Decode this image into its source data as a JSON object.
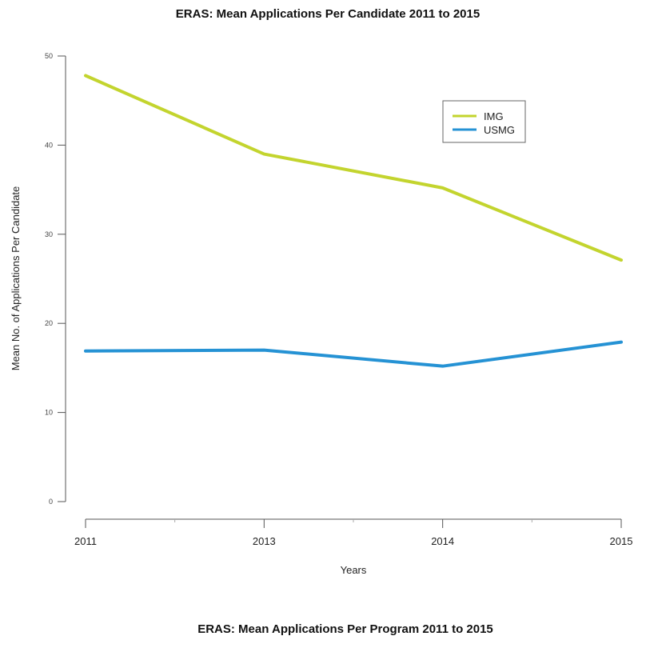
{
  "chart_data": {
    "type": "line",
    "title": "ERAS: Mean Applications Per Candidate 2011  to 2015",
    "xlabel": "Years",
    "ylabel": "Mean No. of Applications Per Candidate",
    "categories": [
      "2011",
      "2013",
      "2014",
      "2015"
    ],
    "yticks": [
      "0",
      "10",
      "20",
      "30",
      "40",
      "50"
    ],
    "ylim": [
      0,
      50
    ],
    "grid": false,
    "legend_position": "top-right",
    "series": [
      {
        "name": "IMG",
        "color": "#c3d42e",
        "values": [
          47.8,
          39.0,
          35.2,
          27.1
        ]
      },
      {
        "name": "USMG",
        "color": "#2592d4",
        "values": [
          16.9,
          17.0,
          15.2,
          17.9
        ]
      }
    ]
  },
  "next_chart_title": "ERAS: Mean Applications Per Program 2011  to 2015"
}
